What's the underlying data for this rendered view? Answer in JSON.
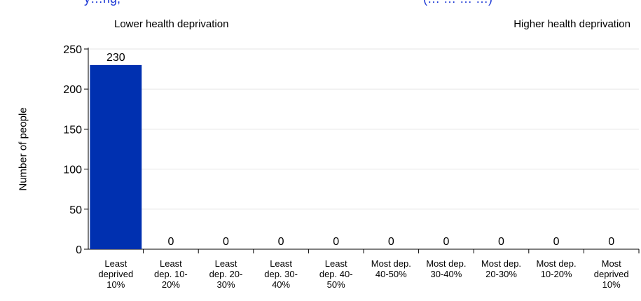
{
  "title_fragments": {
    "left": "y…ng,",
    "right": "(… … … …)"
  },
  "annotations": {
    "left": "Lower health deprivation",
    "right": "Higher health deprivation"
  },
  "chart_data": {
    "type": "bar",
    "title": "",
    "xlabel": "",
    "ylabel": "Number of people",
    "ylim": [
      0,
      250
    ],
    "yticks": [
      0,
      50,
      100,
      150,
      200,
      250
    ],
    "grid": true,
    "bar_color": "#0030b0",
    "categories": [
      [
        "Least",
        "deprived",
        "10%"
      ],
      [
        "Least",
        "dep. 10-",
        "20%"
      ],
      [
        "Least",
        "dep. 20-",
        "30%"
      ],
      [
        "Least",
        "dep. 30-",
        "40%"
      ],
      [
        "Least",
        "dep. 40-",
        "50%"
      ],
      [
        "Most dep.",
        "40-50%"
      ],
      [
        "Most dep.",
        "30-40%"
      ],
      [
        "Most dep.",
        "20-30%"
      ],
      [
        "Most dep.",
        "10-20%"
      ],
      [
        "Most",
        "deprived",
        "10%"
      ]
    ],
    "values": [
      230,
      0,
      0,
      0,
      0,
      0,
      0,
      0,
      0,
      0
    ]
  }
}
